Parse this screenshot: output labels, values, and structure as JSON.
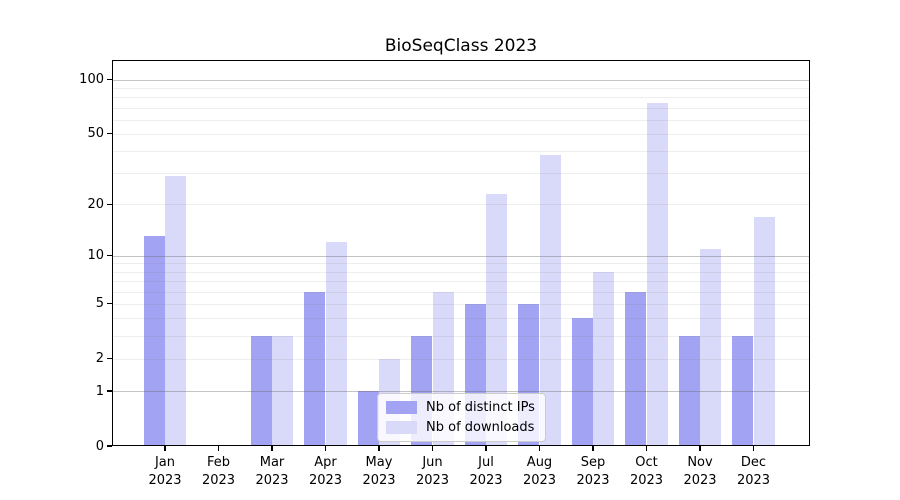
{
  "title": "BioSeqClass 2023",
  "chart_data": {
    "type": "bar",
    "title": "BioSeqClass 2023",
    "categories": [
      "Jan 2023",
      "Feb 2023",
      "Mar 2023",
      "Apr 2023",
      "May 2023",
      "Jun 2023",
      "Jul 2023",
      "Aug 2023",
      "Sep 2023",
      "Oct 2023",
      "Nov 2023",
      "Dec 2023"
    ],
    "series": [
      {
        "name": "Nb of distinct IPs",
        "color": "#a3a3f3",
        "values": [
          13,
          0,
          3,
          6,
          1,
          3,
          5,
          5,
          4,
          6,
          3,
          3
        ]
      },
      {
        "name": "Nb of downloads",
        "color": "#d9d9f9",
        "values": [
          29,
          0,
          3,
          12,
          2,
          6,
          23,
          38,
          8,
          74,
          11,
          17
        ]
      }
    ],
    "xlabel": "",
    "ylabel": "",
    "y_scale": "log10(1+x)",
    "ylim": [
      0,
      126
    ],
    "y_tick_values": [
      0,
      1,
      2,
      5,
      10,
      20,
      50,
      100
    ],
    "y_major_gridlines": [
      1,
      10,
      100
    ],
    "y_minor_gridlines": [
      2,
      3,
      4,
      5,
      6,
      7,
      8,
      9,
      20,
      30,
      40,
      50,
      60,
      70,
      80,
      90
    ],
    "grid": true,
    "legend_position": "lower right inside"
  },
  "legend": {
    "entries": [
      "Nb of distinct IPs",
      "Nb of downloads"
    ]
  },
  "colors": {
    "distinct_ips_bar": "#a3a3f3",
    "downloads_bar": "#d9d9f9",
    "major_grid": "#c4c4c4",
    "minor_grid": "#ececec",
    "axis": "#000000",
    "background": "#ffffff"
  }
}
